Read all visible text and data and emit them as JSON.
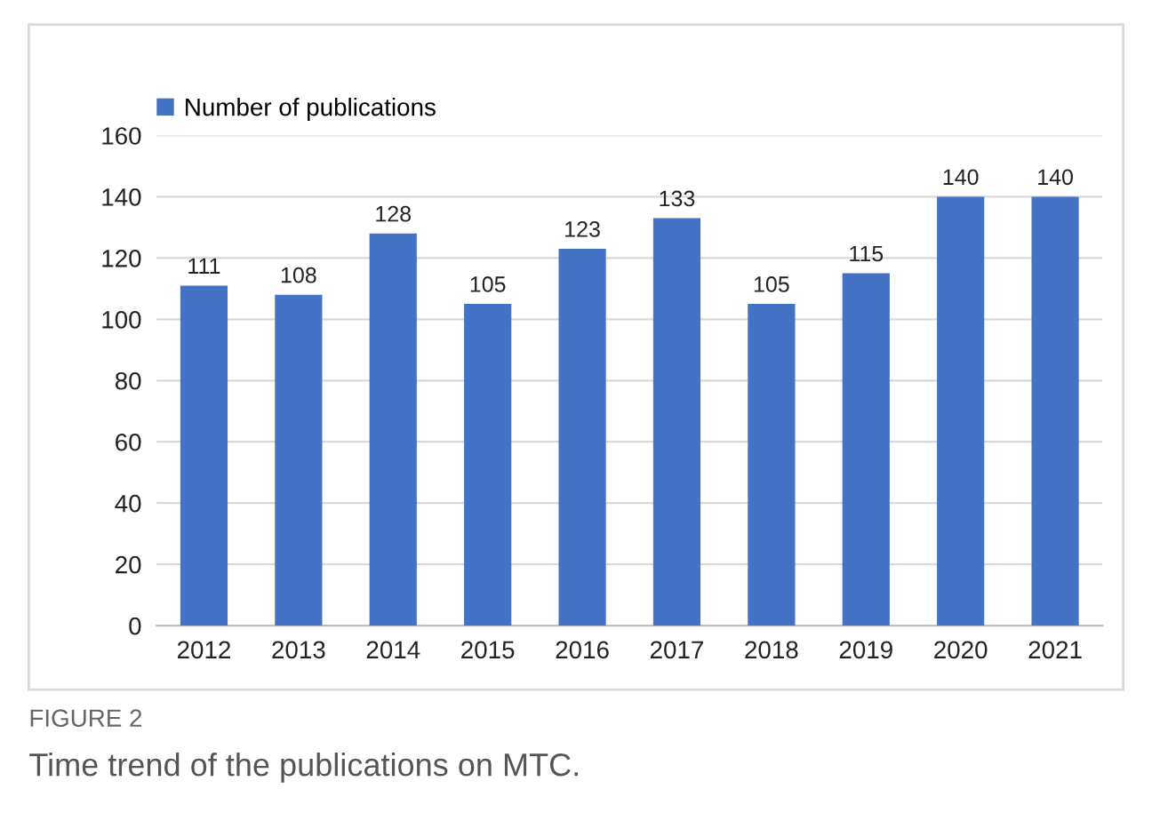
{
  "chart_data": {
    "type": "bar",
    "categories": [
      "2012",
      "2013",
      "2014",
      "2015",
      "2016",
      "2017",
      "2018",
      "2019",
      "2020",
      "2021"
    ],
    "series": [
      {
        "name": "Number of publications",
        "color": "#4472c4",
        "values": [
          111,
          108,
          128,
          105,
          123,
          133,
          105,
          115,
          140,
          140
        ]
      }
    ],
    "ylim": [
      0,
      160
    ],
    "yticks": [
      0,
      20,
      40,
      60,
      80,
      100,
      120,
      140,
      160
    ],
    "grid": "y",
    "legend": "top left",
    "data_labels": true,
    "annotations": [
      "FIGURE 2",
      "Time trend of the publications on MTC."
    ]
  }
}
